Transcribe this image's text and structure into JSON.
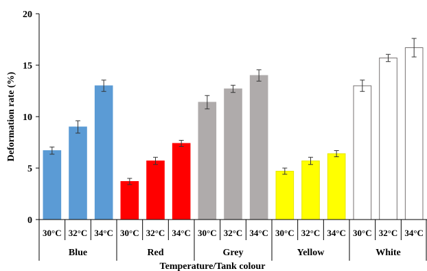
{
  "chart_data": {
    "type": "bar",
    "title": "",
    "xlabel": "Temperature/Tank colour",
    "ylabel": "Deformation rate (%)",
    "ylim": [
      0,
      20
    ],
    "yticks": [
      "0",
      "5",
      "10",
      "15",
      "20"
    ],
    "grid": false,
    "legend": "none",
    "groups": [
      {
        "name": "Blue",
        "color": "#5B9BD5",
        "stroke": "#5B9BD5",
        "bars": [
          {
            "label": "30°C",
            "value": 6.7,
            "error": 0.35
          },
          {
            "label": "32°C",
            "value": 9.0,
            "error": 0.6
          },
          {
            "label": "34°C",
            "value": 13.0,
            "error": 0.55
          }
        ]
      },
      {
        "name": "Red",
        "color": "#FF0000",
        "stroke": "#FF0000",
        "bars": [
          {
            "label": "30°C",
            "value": 3.7,
            "error": 0.3
          },
          {
            "label": "32°C",
            "value": 5.7,
            "error": 0.35
          },
          {
            "label": "34°C",
            "value": 7.4,
            "error": 0.3
          }
        ]
      },
      {
        "name": "Grey",
        "color": "#AFABAB",
        "stroke": "#AFABAB",
        "bars": [
          {
            "label": "30°C",
            "value": 11.4,
            "error": 0.65
          },
          {
            "label": "32°C",
            "value": 12.7,
            "error": 0.35
          },
          {
            "label": "34°C",
            "value": 14.0,
            "error": 0.55
          }
        ]
      },
      {
        "name": "Yellow",
        "color": "#FFFF00",
        "stroke": "#E6E600",
        "bars": [
          {
            "label": "30°C",
            "value": 4.7,
            "error": 0.3
          },
          {
            "label": "32°C",
            "value": 5.7,
            "error": 0.35
          },
          {
            "label": "34°C",
            "value": 6.4,
            "error": 0.3
          }
        ]
      },
      {
        "name": "White",
        "color": "#FFFFFF",
        "stroke": "#767171",
        "bars": [
          {
            "label": "30°C",
            "value": 13.0,
            "error": 0.55
          },
          {
            "label": "32°C",
            "value": 15.7,
            "error": 0.35
          },
          {
            "label": "34°C",
            "value": 16.7,
            "error": 0.9
          }
        ]
      }
    ]
  }
}
